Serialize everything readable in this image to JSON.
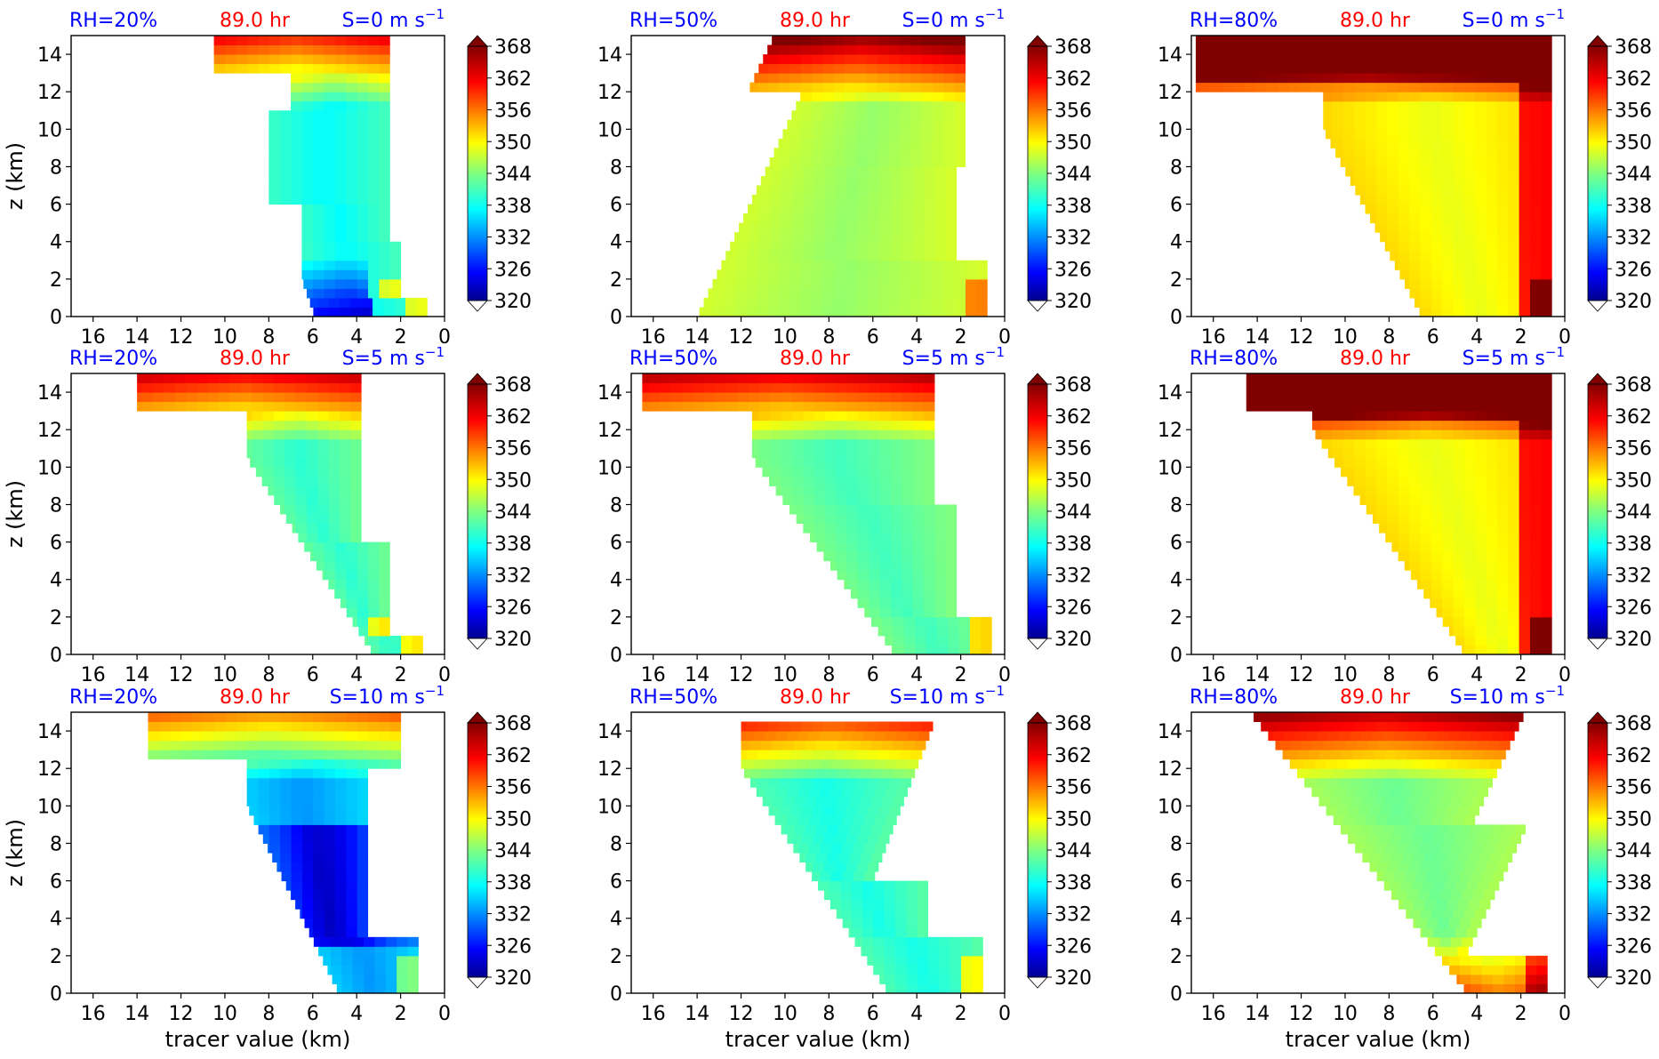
{
  "figure": {
    "ylabel": "z (km)",
    "xlabel": "tracer value (km)",
    "x_ticks": [
      16,
      14,
      12,
      10,
      8,
      6,
      4,
      2,
      0
    ],
    "y_ticks": [
      0,
      2,
      4,
      6,
      8,
      10,
      12,
      14
    ],
    "xlim": [
      17,
      0
    ],
    "ylim": [
      0,
      15
    ],
    "colorbar": {
      "ticks": [
        368,
        362,
        356,
        350,
        344,
        338,
        332,
        326,
        320
      ],
      "range": [
        320,
        368
      ],
      "colormap": "jet",
      "extend": "both"
    },
    "header_colors": {
      "rh": "#0000ff",
      "time": "#ff0000",
      "shear": "#0000ff"
    }
  },
  "chart_data": [
    {
      "type": "heatmap",
      "rh": "RH=20%",
      "time": "89.0 hr",
      "shear": "S=0 m s",
      "shear_exp": "−1"
    },
    {
      "type": "heatmap",
      "rh": "RH=50%",
      "time": "89.0 hr",
      "shear": "S=0 m s",
      "shear_exp": "−1"
    },
    {
      "type": "heatmap",
      "rh": "RH=80%",
      "time": "89.0 hr",
      "shear": "S=0 m s",
      "shear_exp": "−1"
    },
    {
      "type": "heatmap",
      "rh": "RH=20%",
      "time": "89.0 hr",
      "shear": "S=5 m s",
      "shear_exp": "−1"
    },
    {
      "type": "heatmap",
      "rh": "RH=50%",
      "time": "89.0 hr",
      "shear": "S=5 m s",
      "shear_exp": "−1"
    },
    {
      "type": "heatmap",
      "rh": "RH=80%",
      "time": "89.0 hr",
      "shear": "S=5 m s",
      "shear_exp": "−1"
    },
    {
      "type": "heatmap",
      "rh": "RH=20%",
      "time": "89.0 hr",
      "shear": "S=10 m s",
      "shear_exp": "−1"
    },
    {
      "type": "heatmap",
      "rh": "RH=50%",
      "time": "89.0 hr",
      "shear": "S=10 m s",
      "shear_exp": "−1"
    },
    {
      "type": "heatmap",
      "rh": "RH=80%",
      "time": "89.0 hr",
      "shear": "S=10 m s",
      "shear_exp": "−1"
    }
  ]
}
